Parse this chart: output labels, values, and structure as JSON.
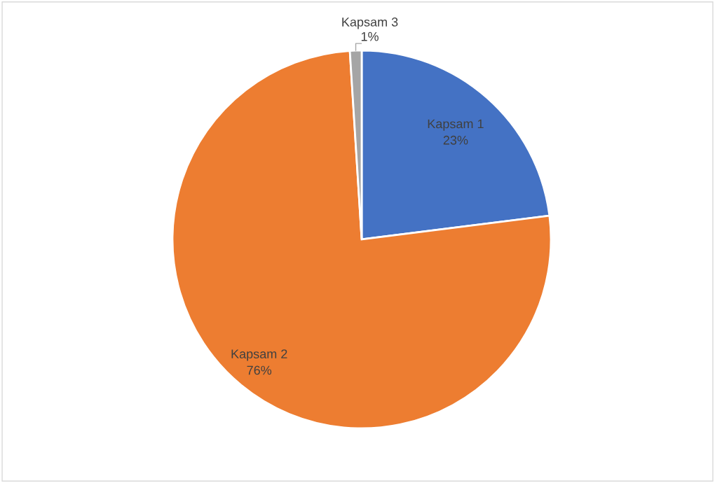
{
  "chart_data": {
    "type": "pie",
    "categories": [
      "Kapsam 1",
      "Kapsam 2",
      "Kapsam 3"
    ],
    "values": [
      23,
      76,
      1
    ],
    "colors": [
      "#4472c4",
      "#ed7d31",
      "#a5a5a5"
    ],
    "value_labels": [
      "23%",
      "76%",
      "1%"
    ],
    "legend": false
  }
}
